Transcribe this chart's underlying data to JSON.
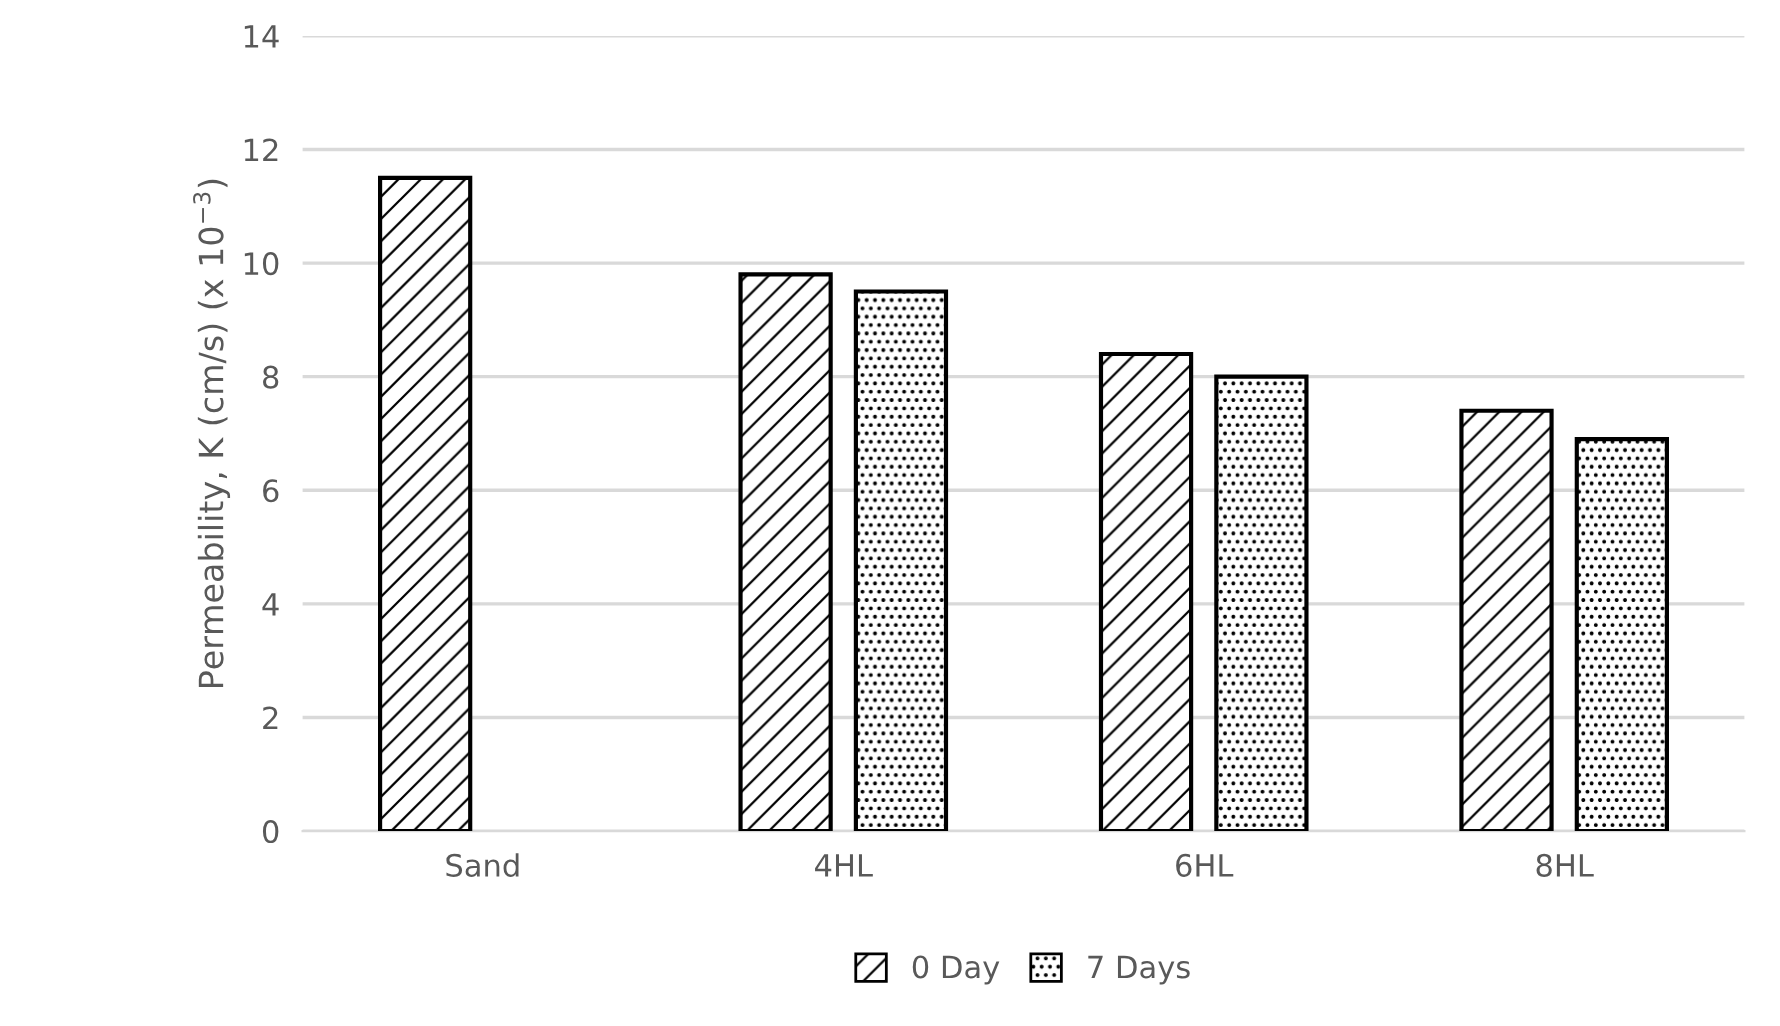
{
  "chart_data": {
    "type": "bar",
    "ylabel": "Permeability, K (cm/s) (x 10$^{−3}$)",
    "categories": [
      "Sand",
      "4HL",
      "6HL",
      "8HL"
    ],
    "series": [
      {
        "name": "0 Day",
        "color": "#000000",
        "values": [
          11.5,
          9.8,
          8.4,
          7.4
        ]
      },
      {
        "name": "7 Days",
        "color": "#000000",
        "values": [
          null,
          9.5,
          8.0,
          6.9
        ]
      }
    ],
    "ylim": [
      0,
      14
    ],
    "yticks": [
      0,
      2,
      4,
      6,
      8,
      10,
      12,
      14
    ],
    "grid": "y",
    "legend": "bottom"
  }
}
